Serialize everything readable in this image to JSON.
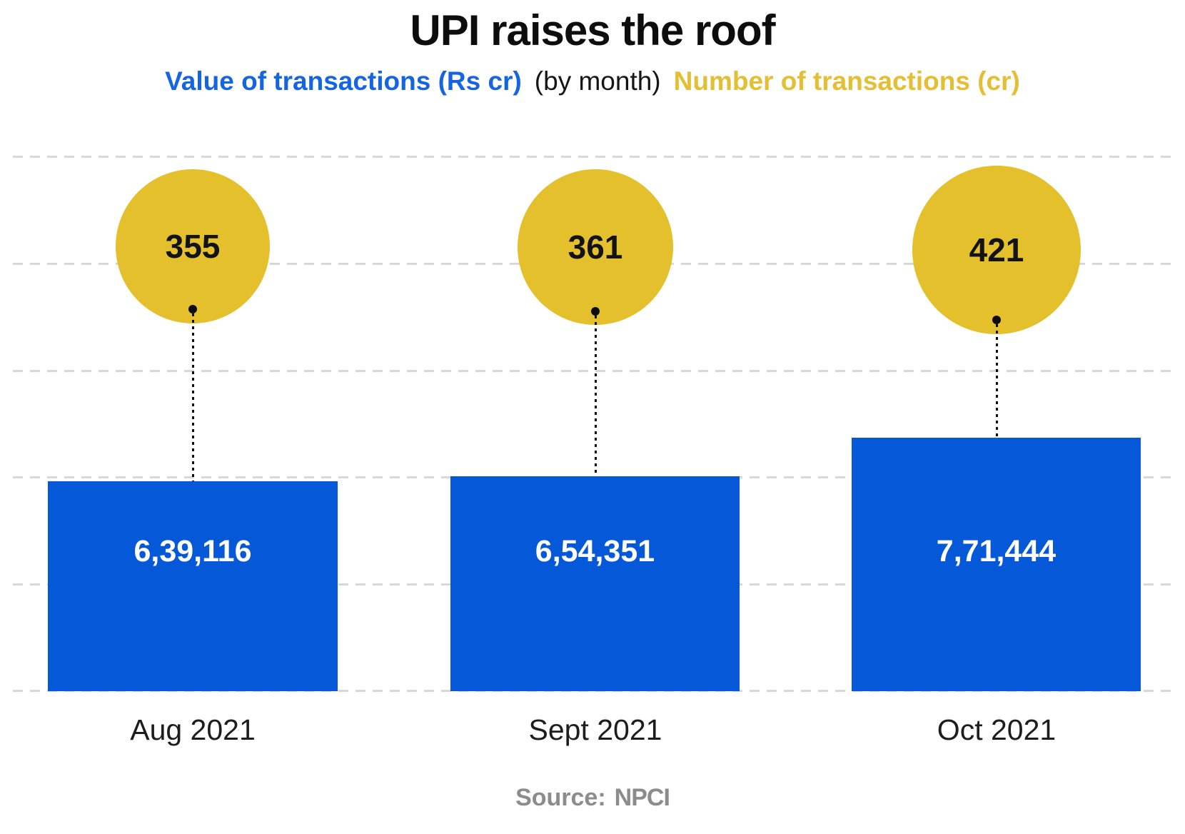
{
  "header": {
    "title": "UPI raises the roof",
    "legend": {
      "value_label": "Value of transactions (Rs cr)",
      "by_month": "(by month)",
      "number_label": "Number of transactions (cr)"
    }
  },
  "chart_data": {
    "type": "bar",
    "subtype": "bar-with-bubble-overlay",
    "title": "UPI raises the roof",
    "categories": [
      "Aug 2021",
      "Sept 2021",
      "Oct 2021"
    ],
    "series": [
      {
        "name": "Value of transactions (Rs cr)",
        "display": "blue bars",
        "color": "#0558d8",
        "values": [
          639116,
          654351,
          771444
        ],
        "labels": [
          "6,39,116",
          "6,54,351",
          "7,71,444"
        ]
      },
      {
        "name": "Number of transactions (cr)",
        "display": "yellow bubbles (area ~ value)",
        "color": "#e4c02d",
        "values": [
          355,
          361,
          421
        ],
        "labels": [
          "355",
          "361",
          "421"
        ]
      }
    ],
    "legend_position": "top",
    "grid": "horizontal dashed lines, 6 lines, light gray",
    "source": "NPCI"
  },
  "footer": {
    "source_label": "Source:",
    "source_value": "NPCI"
  },
  "colors": {
    "bar_blue": "#0558d8",
    "bubble_yellow": "#e4c02d",
    "legend_blue_text": "#1565e0",
    "legend_yellow_text": "#e4be33",
    "gridline_gray": "#d8d8d8",
    "source_gray": "#8c8c8c",
    "title_black": "#0d0d0d",
    "bar_label_white": "#ffffff"
  }
}
